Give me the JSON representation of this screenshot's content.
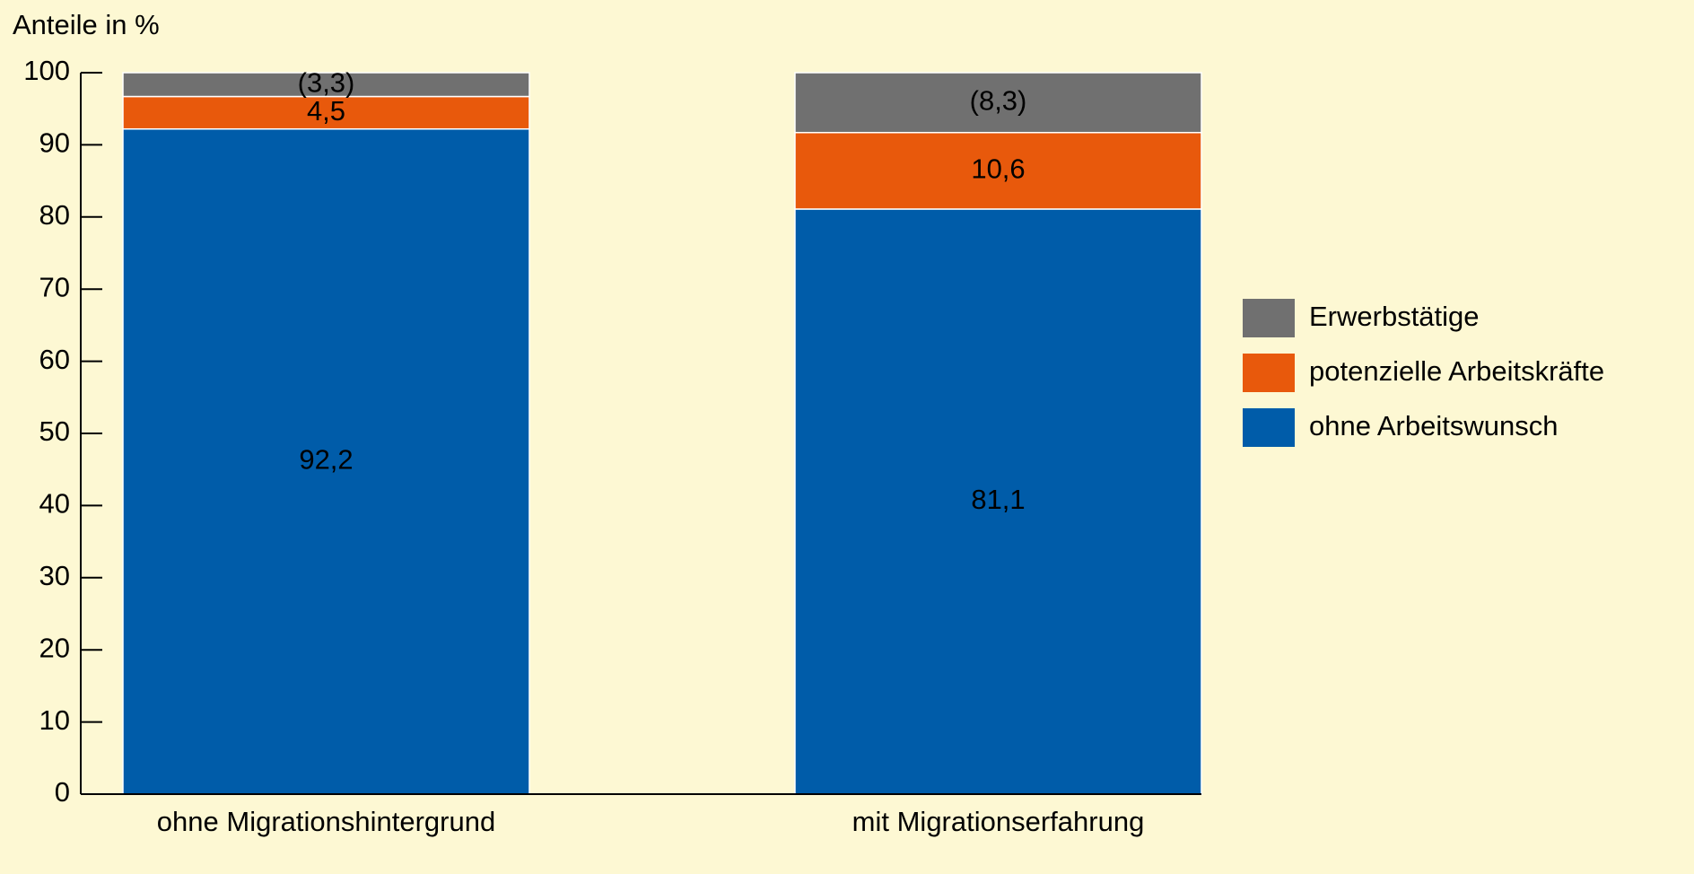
{
  "chart_data": {
    "type": "stacked_bar",
    "y_axis_label": "Anteile in %",
    "categories": [
      "ohne Migrationshintergrund",
      "mit Migrationserfahrung"
    ],
    "series": [
      {
        "name": "ohne Arbeitswunsch",
        "color": "#005ca9",
        "values": [
          92.2,
          81.1
        ],
        "value_labels": [
          "92,2",
          "81,1"
        ]
      },
      {
        "name": "potenzielle Arbeitskräfte",
        "color": "#e8590c",
        "values": [
          4.5,
          10.6
        ],
        "value_labels": [
          "4,5",
          "10,6"
        ]
      },
      {
        "name": "Erwerbstätige",
        "color": "#707070",
        "values": [
          3.3,
          8.3
        ],
        "value_labels": [
          "(3,3)",
          "(8,3)"
        ]
      }
    ],
    "ylim": [
      0,
      100
    ],
    "yticks": [
      0,
      10,
      20,
      30,
      40,
      50,
      60,
      70,
      80,
      90,
      100
    ],
    "legend": "right"
  }
}
